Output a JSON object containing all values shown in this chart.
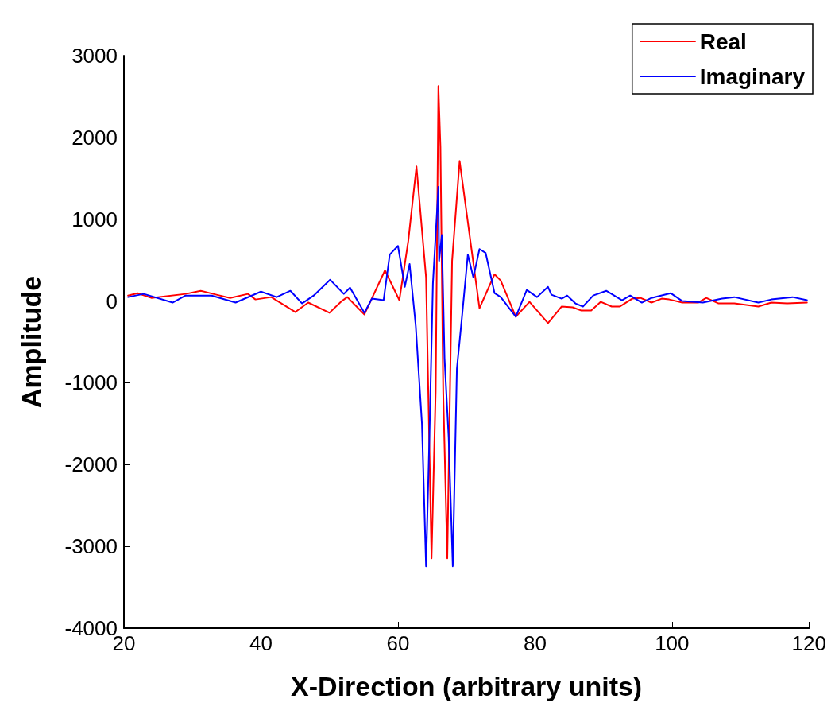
{
  "chart_data": {
    "type": "line",
    "xlabel": "X-Direction (arbitrary units)",
    "ylabel": "Amplitude",
    "xlim": [
      20,
      120
    ],
    "xticks": [
      20,
      40,
      60,
      80,
      100,
      120
    ],
    "ylim": [
      -4000,
      3000
    ],
    "yticks": [
      -4000,
      -3000,
      -2000,
      -1000,
      0,
      1000,
      2000,
      3000
    ],
    "grid": false,
    "legend": "top right",
    "marker": "none",
    "line_style": "solid",
    "series": [
      {
        "name": "Real",
        "color": "#ff0000",
        "x": [
          20.6,
          22,
          24,
          29,
          31.2,
          33.5,
          35.5,
          38.1,
          39.2,
          41.5,
          45,
          46.9,
          50,
          51.8,
          52.6,
          55.1,
          58.1,
          60.2,
          61.5,
          62.7,
          64.1,
          64.9,
          65.5,
          65.9,
          66.2,
          66.6,
          67.2,
          67.9,
          69,
          70.7,
          71.9,
          74.1,
          75,
          77.2,
          79.2,
          81.9,
          83.9,
          85.5,
          86.7,
          88.2,
          89.6,
          91.2,
          92.4,
          94.2,
          95.4,
          97,
          98.5,
          99.6,
          101.5,
          103.8,
          105,
          106.8,
          109.1,
          112.6,
          114.5,
          116.8,
          119.7
        ],
        "values": [
          67,
          96,
          38,
          87,
          125,
          77,
          38,
          87,
          19,
          48,
          -135,
          -19,
          -144,
          0,
          48,
          -164,
          375,
          10,
          731,
          1646,
          289,
          -3147,
          -1107,
          2628,
          1886,
          -1107,
          -3147,
          491,
          1713,
          654,
          -87,
          327,
          250,
          -192,
          -10,
          -270,
          -67,
          -77,
          -115,
          -115,
          -10,
          -67,
          -67,
          29,
          38,
          -19,
          29,
          19,
          -19,
          -19,
          38,
          -29,
          -29,
          -67,
          -19,
          -29,
          -19
        ]
      },
      {
        "name": "Imaginary",
        "color": "#0000ff",
        "x": [
          20.6,
          22.9,
          27.1,
          29,
          32.8,
          36.3,
          40,
          42.3,
          44.3,
          46,
          47.7,
          50.1,
          52.1,
          53,
          55.1,
          56.2,
          57.9,
          58.8,
          60,
          61,
          61.7,
          62.6,
          63.5,
          64.1,
          64.6,
          65.1,
          65.9,
          66,
          66.4,
          66.8,
          67.4,
          68,
          68.6,
          69.3,
          70.2,
          71,
          71.9,
          72.8,
          74.1,
          75,
          77.2,
          78.8,
          80.3,
          81.9,
          82.4,
          83.9,
          84.7,
          85.9,
          87,
          88.5,
          90.4,
          92.7,
          93.9,
          95.6,
          97,
          99.8,
          101.5,
          104.5,
          107.3,
          109.1,
          112.6,
          114.5,
          117.6,
          119.7
        ],
        "values": [
          48,
          87,
          -19,
          67,
          67,
          -19,
          115,
          48,
          125,
          -29,
          67,
          260,
          87,
          164,
          -144,
          29,
          10,
          568,
          674,
          173,
          452,
          -308,
          -1501,
          -3243,
          -1627,
          212,
          1396,
          491,
          808,
          -703,
          -1665,
          -3243,
          -828,
          -231,
          568,
          289,
          635,
          587,
          96,
          48,
          -192,
          135,
          48,
          173,
          77,
          29,
          67,
          -29,
          -67,
          67,
          125,
          10,
          67,
          -19,
          38,
          96,
          0,
          -19,
          29,
          48,
          -19,
          19,
          48,
          10
        ]
      }
    ]
  }
}
